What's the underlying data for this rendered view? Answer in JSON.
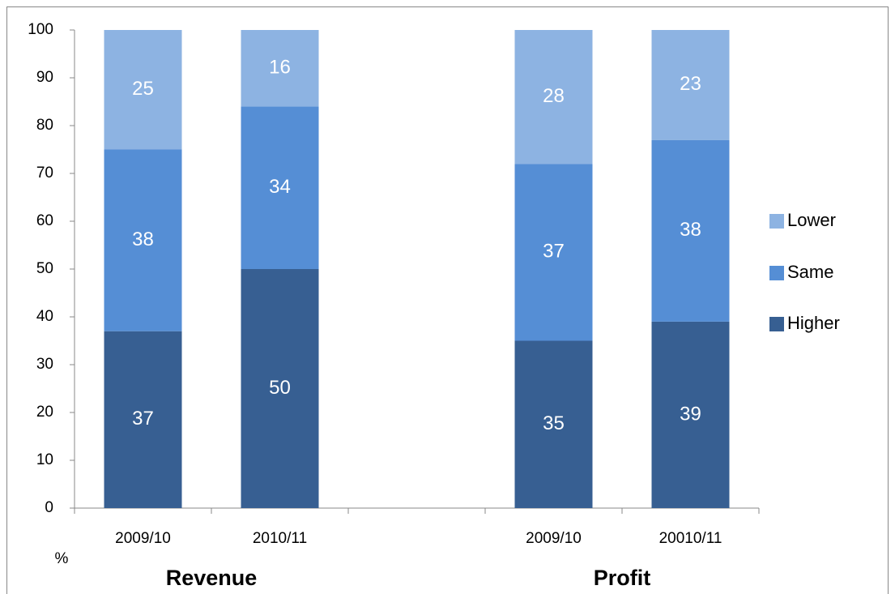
{
  "chart_data": {
    "type": "stacked-bar",
    "y_label": "%",
    "categories": [
      "2009/10",
      "2010/11",
      null,
      "2009/10",
      "20010/11"
    ],
    "category_groups": [
      "Revenue",
      "Profit"
    ],
    "series": [
      {
        "name": "Higher",
        "color": "#375f92",
        "values": [
          37,
          50,
          null,
          35,
          39
        ]
      },
      {
        "name": "Same",
        "color": "#558ed5",
        "values": [
          38,
          34,
          null,
          37,
          38
        ]
      },
      {
        "name": "Lower",
        "color": "#8db3e2",
        "values": [
          25,
          16,
          null,
          28,
          23
        ]
      }
    ],
    "ylim": [
      0,
      100
    ],
    "yticks": [
      0,
      10,
      20,
      30,
      40,
      50,
      60,
      70,
      80,
      90,
      100
    ],
    "legend": "right",
    "grid": false
  }
}
